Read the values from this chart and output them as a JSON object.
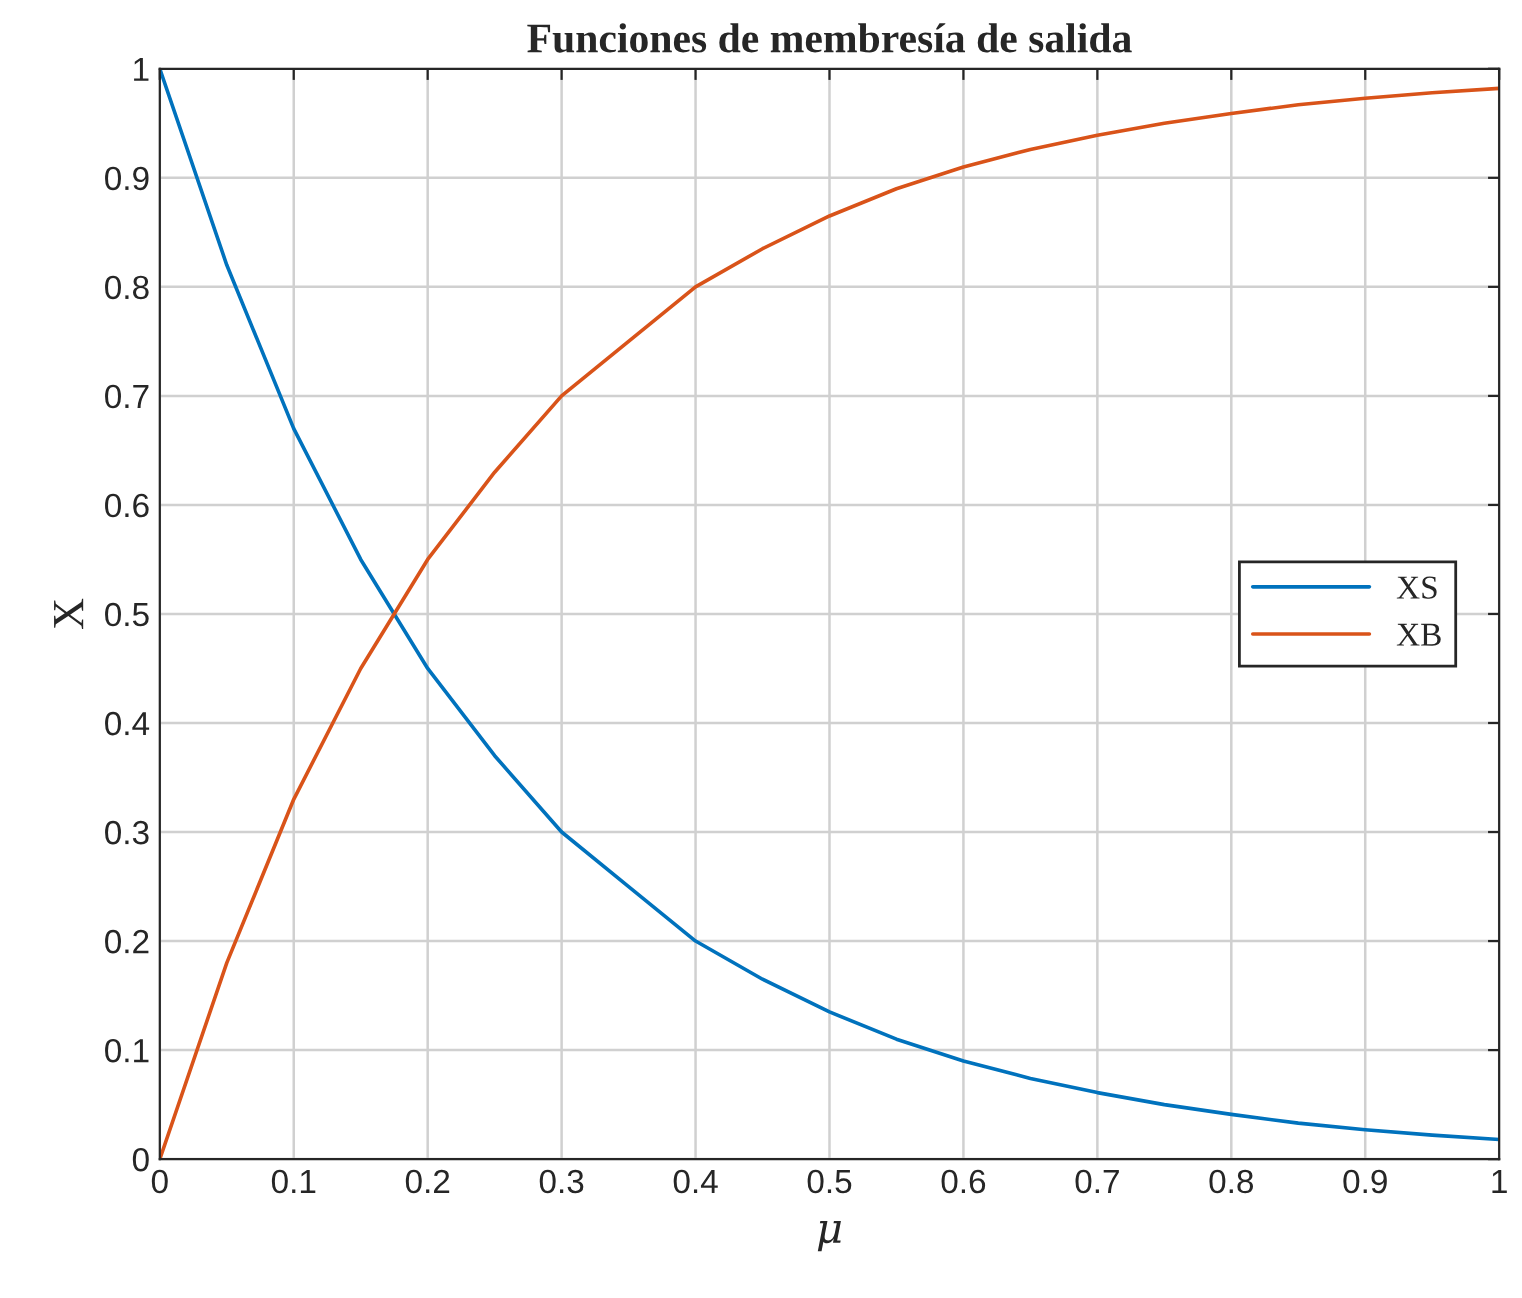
{
  "chart_data": {
    "type": "line",
    "title": "Funciones de membresía de salida",
    "xlabel": "μ",
    "ylabel": "X",
    "x": [
      0,
      0.05,
      0.1,
      0.15,
      0.2,
      0.25,
      0.3,
      0.35,
      0.4,
      0.45,
      0.5,
      0.55,
      0.6,
      0.65,
      0.7,
      0.75,
      0.8,
      0.85,
      0.9,
      0.95,
      1
    ],
    "series": [
      {
        "name": "XS",
        "color": "#0072bd",
        "values": [
          1,
          0.82,
          0.67,
          0.55,
          0.45,
          0.37,
          0.3,
          0.25,
          0.2,
          0.165,
          0.135,
          0.11,
          0.09,
          0.074,
          0.061,
          0.05,
          0.041,
          0.033,
          0.027,
          0.022,
          0.018
        ]
      },
      {
        "name": "XB",
        "color": "#d95319",
        "values": [
          0,
          0.18,
          0.33,
          0.45,
          0.55,
          0.63,
          0.7,
          0.75,
          0.8,
          0.835,
          0.865,
          0.89,
          0.91,
          0.926,
          0.939,
          0.95,
          0.959,
          0.967,
          0.973,
          0.978,
          0.982
        ]
      }
    ],
    "xlim": [
      0,
      1
    ],
    "ylim": [
      0,
      1
    ],
    "xticks": [
      0,
      0.1,
      0.2,
      0.3,
      0.4,
      0.5,
      0.6,
      0.7,
      0.8,
      0.9,
      1
    ],
    "yticks": [
      0,
      0.1,
      0.2,
      0.3,
      0.4,
      0.5,
      0.6,
      0.7,
      0.8,
      0.9,
      1
    ],
    "grid": true,
    "legend": "right",
    "marker": "none",
    "line_style": "solid"
  }
}
